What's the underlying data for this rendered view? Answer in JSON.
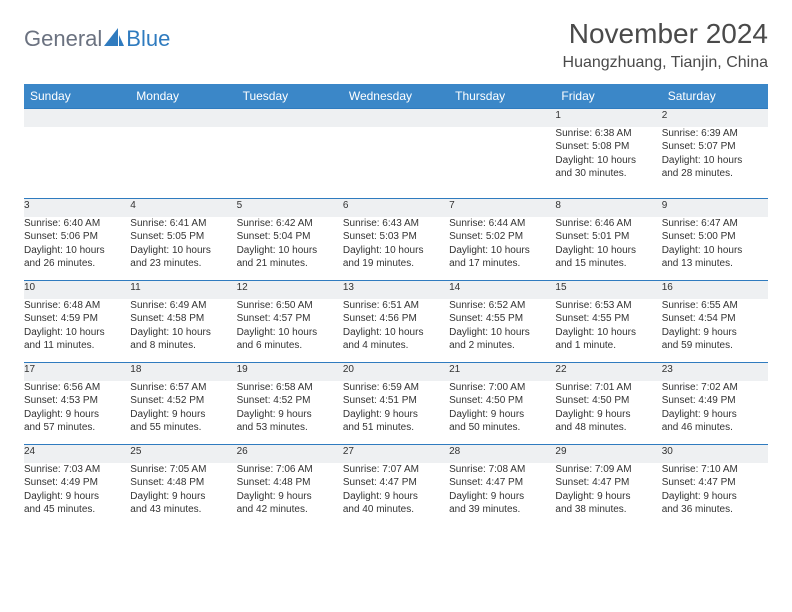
{
  "logo": {
    "general": "General",
    "blue": "Blue"
  },
  "title": "November 2024",
  "location": "Huangzhuang, Tianjin, China",
  "colors": {
    "header_bg": "#3b87c8",
    "header_text": "#ffffff",
    "daynum_bg": "#eef0f2",
    "daynum_border": "#2f7bbf",
    "logo_gray": "#6b7280",
    "logo_blue": "#2f7bbf",
    "text": "#333333",
    "title_color": "#4a4a4a"
  },
  "typography": {
    "title_size": 28,
    "location_size": 16,
    "header_size": 12,
    "cell_size": 10
  },
  "weekdays": [
    "Sunday",
    "Monday",
    "Tuesday",
    "Wednesday",
    "Thursday",
    "Friday",
    "Saturday"
  ],
  "weeks": [
    [
      {
        "n": "",
        "lines": [
          "",
          "",
          "",
          ""
        ]
      },
      {
        "n": "",
        "lines": [
          "",
          "",
          "",
          ""
        ]
      },
      {
        "n": "",
        "lines": [
          "",
          "",
          "",
          ""
        ]
      },
      {
        "n": "",
        "lines": [
          "",
          "",
          "",
          ""
        ]
      },
      {
        "n": "",
        "lines": [
          "",
          "",
          "",
          ""
        ]
      },
      {
        "n": "1",
        "lines": [
          "Sunrise: 6:38 AM",
          "Sunset: 5:08 PM",
          "Daylight: 10 hours",
          "and 30 minutes."
        ]
      },
      {
        "n": "2",
        "lines": [
          "Sunrise: 6:39 AM",
          "Sunset: 5:07 PM",
          "Daylight: 10 hours",
          "and 28 minutes."
        ]
      }
    ],
    [
      {
        "n": "3",
        "lines": [
          "Sunrise: 6:40 AM",
          "Sunset: 5:06 PM",
          "Daylight: 10 hours",
          "and 26 minutes."
        ]
      },
      {
        "n": "4",
        "lines": [
          "Sunrise: 6:41 AM",
          "Sunset: 5:05 PM",
          "Daylight: 10 hours",
          "and 23 minutes."
        ]
      },
      {
        "n": "5",
        "lines": [
          "Sunrise: 6:42 AM",
          "Sunset: 5:04 PM",
          "Daylight: 10 hours",
          "and 21 minutes."
        ]
      },
      {
        "n": "6",
        "lines": [
          "Sunrise: 6:43 AM",
          "Sunset: 5:03 PM",
          "Daylight: 10 hours",
          "and 19 minutes."
        ]
      },
      {
        "n": "7",
        "lines": [
          "Sunrise: 6:44 AM",
          "Sunset: 5:02 PM",
          "Daylight: 10 hours",
          "and 17 minutes."
        ]
      },
      {
        "n": "8",
        "lines": [
          "Sunrise: 6:46 AM",
          "Sunset: 5:01 PM",
          "Daylight: 10 hours",
          "and 15 minutes."
        ]
      },
      {
        "n": "9",
        "lines": [
          "Sunrise: 6:47 AM",
          "Sunset: 5:00 PM",
          "Daylight: 10 hours",
          "and 13 minutes."
        ]
      }
    ],
    [
      {
        "n": "10",
        "lines": [
          "Sunrise: 6:48 AM",
          "Sunset: 4:59 PM",
          "Daylight: 10 hours",
          "and 11 minutes."
        ]
      },
      {
        "n": "11",
        "lines": [
          "Sunrise: 6:49 AM",
          "Sunset: 4:58 PM",
          "Daylight: 10 hours",
          "and 8 minutes."
        ]
      },
      {
        "n": "12",
        "lines": [
          "Sunrise: 6:50 AM",
          "Sunset: 4:57 PM",
          "Daylight: 10 hours",
          "and 6 minutes."
        ]
      },
      {
        "n": "13",
        "lines": [
          "Sunrise: 6:51 AM",
          "Sunset: 4:56 PM",
          "Daylight: 10 hours",
          "and 4 minutes."
        ]
      },
      {
        "n": "14",
        "lines": [
          "Sunrise: 6:52 AM",
          "Sunset: 4:55 PM",
          "Daylight: 10 hours",
          "and 2 minutes."
        ]
      },
      {
        "n": "15",
        "lines": [
          "Sunrise: 6:53 AM",
          "Sunset: 4:55 PM",
          "Daylight: 10 hours",
          "and 1 minute."
        ]
      },
      {
        "n": "16",
        "lines": [
          "Sunrise: 6:55 AM",
          "Sunset: 4:54 PM",
          "Daylight: 9 hours",
          "and 59 minutes."
        ]
      }
    ],
    [
      {
        "n": "17",
        "lines": [
          "Sunrise: 6:56 AM",
          "Sunset: 4:53 PM",
          "Daylight: 9 hours",
          "and 57 minutes."
        ]
      },
      {
        "n": "18",
        "lines": [
          "Sunrise: 6:57 AM",
          "Sunset: 4:52 PM",
          "Daylight: 9 hours",
          "and 55 minutes."
        ]
      },
      {
        "n": "19",
        "lines": [
          "Sunrise: 6:58 AM",
          "Sunset: 4:52 PM",
          "Daylight: 9 hours",
          "and 53 minutes."
        ]
      },
      {
        "n": "20",
        "lines": [
          "Sunrise: 6:59 AM",
          "Sunset: 4:51 PM",
          "Daylight: 9 hours",
          "and 51 minutes."
        ]
      },
      {
        "n": "21",
        "lines": [
          "Sunrise: 7:00 AM",
          "Sunset: 4:50 PM",
          "Daylight: 9 hours",
          "and 50 minutes."
        ]
      },
      {
        "n": "22",
        "lines": [
          "Sunrise: 7:01 AM",
          "Sunset: 4:50 PM",
          "Daylight: 9 hours",
          "and 48 minutes."
        ]
      },
      {
        "n": "23",
        "lines": [
          "Sunrise: 7:02 AM",
          "Sunset: 4:49 PM",
          "Daylight: 9 hours",
          "and 46 minutes."
        ]
      }
    ],
    [
      {
        "n": "24",
        "lines": [
          "Sunrise: 7:03 AM",
          "Sunset: 4:49 PM",
          "Daylight: 9 hours",
          "and 45 minutes."
        ]
      },
      {
        "n": "25",
        "lines": [
          "Sunrise: 7:05 AM",
          "Sunset: 4:48 PM",
          "Daylight: 9 hours",
          "and 43 minutes."
        ]
      },
      {
        "n": "26",
        "lines": [
          "Sunrise: 7:06 AM",
          "Sunset: 4:48 PM",
          "Daylight: 9 hours",
          "and 42 minutes."
        ]
      },
      {
        "n": "27",
        "lines": [
          "Sunrise: 7:07 AM",
          "Sunset: 4:47 PM",
          "Daylight: 9 hours",
          "and 40 minutes."
        ]
      },
      {
        "n": "28",
        "lines": [
          "Sunrise: 7:08 AM",
          "Sunset: 4:47 PM",
          "Daylight: 9 hours",
          "and 39 minutes."
        ]
      },
      {
        "n": "29",
        "lines": [
          "Sunrise: 7:09 AM",
          "Sunset: 4:47 PM",
          "Daylight: 9 hours",
          "and 38 minutes."
        ]
      },
      {
        "n": "30",
        "lines": [
          "Sunrise: 7:10 AM",
          "Sunset: 4:47 PM",
          "Daylight: 9 hours",
          "and 36 minutes."
        ]
      }
    ]
  ]
}
